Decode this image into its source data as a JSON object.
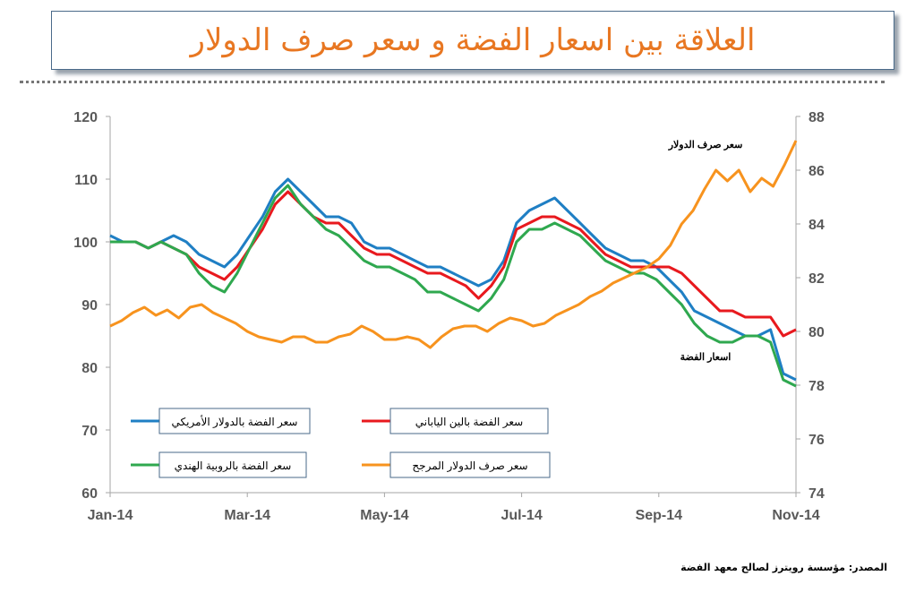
{
  "title": "العلاقة بين اسعار الفضة و سعر صرف الدولار",
  "source": "المصدر: مؤسسة رويترز لصالح معهد الفضة",
  "chart_data": {
    "type": "line",
    "x_ticks": [
      "Jan-14",
      "Mar-14",
      "May-14",
      "Jul-14",
      "Sep-14",
      "Nov-14"
    ],
    "y_left": {
      "min": 60,
      "max": 120,
      "ticks": [
        60,
        70,
        80,
        90,
        100,
        110,
        120
      ]
    },
    "y_right": {
      "min": 74,
      "max": 88,
      "ticks": [
        74,
        76,
        78,
        80,
        82,
        84,
        86,
        88
      ]
    },
    "grid": false,
    "annotations": [
      {
        "text": "سعر صرف الدولار"
      },
      {
        "text": "اسعار الفضة"
      }
    ],
    "series": [
      {
        "name": "سعر الفضة بالدولار الأمريكي",
        "axis": "left",
        "color": "#1f7fc4",
        "values": [
          101,
          100,
          100,
          99,
          100,
          101,
          100,
          98,
          97,
          96,
          98,
          101,
          104,
          108,
          110,
          108,
          106,
          104,
          104,
          103,
          100,
          99,
          99,
          98,
          97,
          96,
          96,
          95,
          94,
          93,
          94,
          97,
          103,
          105,
          106,
          107,
          105,
          103,
          101,
          99,
          98,
          97,
          97,
          96,
          94,
          92,
          89,
          88,
          87,
          86,
          85,
          85,
          86,
          79,
          78
        ]
      },
      {
        "name": "سعر الفضة بالين الياباني",
        "axis": "left",
        "color": "#e8191e",
        "values": [
          100,
          100,
          100,
          99,
          100,
          99,
          98,
          96,
          95,
          94,
          96,
          99,
          102,
          106,
          108,
          106,
          104,
          103,
          103,
          101,
          99,
          98,
          98,
          97,
          96,
          95,
          95,
          94,
          93,
          91,
          93,
          96,
          102,
          103,
          104,
          104,
          103,
          102,
          100,
          98,
          97,
          96,
          96,
          96,
          96,
          95,
          93,
          91,
          89,
          89,
          88,
          88,
          88,
          85,
          86
        ]
      },
      {
        "name": "سعر الفضة بالروبية الهندي",
        "axis": "left",
        "color": "#2fa84f",
        "values": [
          100,
          100,
          100,
          99,
          100,
          99,
          98,
          95,
          93,
          92,
          95,
          99,
          103,
          107,
          109,
          106,
          104,
          102,
          101,
          99,
          97,
          96,
          96,
          95,
          94,
          92,
          92,
          91,
          90,
          89,
          91,
          94,
          100,
          102,
          102,
          103,
          102,
          101,
          99,
          97,
          96,
          95,
          95,
          94,
          92,
          90,
          87,
          85,
          84,
          84,
          85,
          85,
          84,
          78,
          77
        ]
      },
      {
        "name": "سعر صرف الدولار المرجح",
        "axis": "right",
        "color": "#f7931e",
        "values": [
          80.2,
          80.4,
          80.7,
          80.9,
          80.6,
          80.8,
          80.5,
          80.9,
          81.0,
          80.7,
          80.5,
          80.3,
          80.0,
          79.8,
          79.7,
          79.6,
          79.8,
          79.8,
          79.6,
          79.6,
          79.8,
          79.9,
          80.2,
          80.0,
          79.7,
          79.7,
          79.8,
          79.7,
          79.4,
          79.8,
          80.1,
          80.2,
          80.2,
          80.0,
          80.3,
          80.5,
          80.4,
          80.2,
          80.3,
          80.6,
          80.8,
          81.0,
          81.3,
          81.5,
          81.8,
          82.0,
          82.2,
          82.4,
          82.7,
          83.2,
          84.0,
          84.5,
          85.3,
          86.0,
          85.6,
          86.0,
          85.2,
          85.7,
          85.4,
          86.2,
          87.1
        ]
      }
    ],
    "legend": [
      {
        "label": "سعر الفضة بالدولار الأمريكي",
        "color": "#1f7fc4"
      },
      {
        "label": "سعر الفضة بالين الياباني",
        "color": "#e8191e"
      },
      {
        "label": "سعر الفضة بالروبية الهندي",
        "color": "#2fa84f"
      },
      {
        "label": "سعر صرف الدولار المرجح",
        "color": "#f7931e"
      }
    ]
  }
}
